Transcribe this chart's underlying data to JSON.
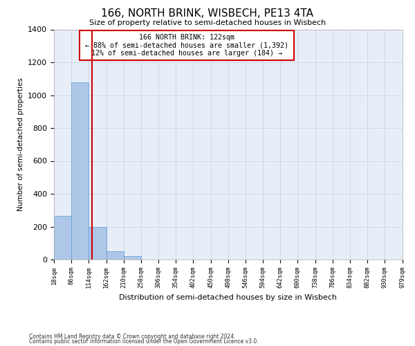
{
  "title": "166, NORTH BRINK, WISBECH, PE13 4TA",
  "subtitle": "Size of property relative to semi-detached houses in Wisbech",
  "xlabel": "Distribution of semi-detached houses by size in Wisbech",
  "ylabel": "Number of semi-detached properties",
  "footnote1": "Contains HM Land Registry data © Crown copyright and database right 2024.",
  "footnote2": "Contains public sector information licensed under the Open Government Licence v3.0.",
  "annotation_line1": "166 NORTH BRINK: 122sqm",
  "annotation_line2": "← 88% of semi-detached houses are smaller (1,392)",
  "annotation_line3": "12% of semi-detached houses are larger (184) →",
  "property_size": 122,
  "bins": [
    18,
    66,
    114,
    162,
    210,
    258,
    306,
    354,
    402,
    450,
    498,
    546,
    594,
    642,
    690,
    738,
    786,
    834,
    882,
    930,
    979
  ],
  "counts": [
    265,
    1080,
    197,
    51,
    20,
    0,
    0,
    0,
    0,
    0,
    0,
    0,
    0,
    0,
    0,
    0,
    0,
    0,
    0,
    0
  ],
  "bar_color": "#aec6e8",
  "bar_edge_color": "#5a9fd4",
  "redline_color": "#cc0000",
  "annotation_box_color": "#cc0000",
  "grid_color": "#d0d8e8",
  "background_color": "#e8eef8",
  "ylim": [
    0,
    1400
  ],
  "yticks": [
    0,
    200,
    400,
    600,
    800,
    1000,
    1200,
    1400
  ]
}
